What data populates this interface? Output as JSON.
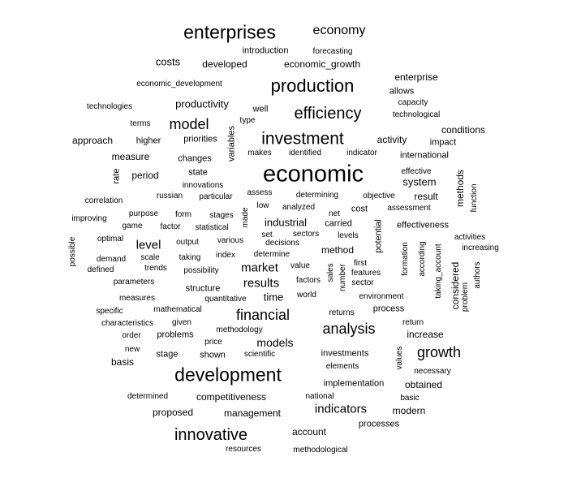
{
  "words": [
    "enterprises",
    "economy",
    "introduction",
    "forecasting",
    "costs",
    "developed",
    "economic_growth",
    "economic_development",
    "production",
    "enterprise",
    "allows",
    "technologies",
    "productivity",
    "well",
    "capacity",
    "efficiency",
    "technological",
    "terms",
    "model",
    "type",
    "conditions",
    "approach",
    "higher",
    "priorities",
    "investment",
    "activity",
    "impact",
    "measure",
    "makes",
    "identified",
    "indicator",
    "international",
    "changes",
    "variables",
    "economic",
    "rate",
    "period",
    "state",
    "effective",
    "system",
    "innovations",
    "correlation",
    "russian",
    "particular",
    "assess",
    "determining",
    "objective",
    "result",
    "methods",
    "function",
    "purpose",
    "form",
    "stages",
    "made",
    "low",
    "analyzed",
    "net",
    "cost",
    "assessment",
    "improving",
    "game",
    "factor",
    "statistical",
    "industrial",
    "carried",
    "potential",
    "effectiveness",
    "optimal",
    "set",
    "sectors",
    "levels",
    "activities",
    "level",
    "output",
    "various",
    "decisions",
    "possible",
    "formation",
    "according",
    "taking_account",
    "increasing",
    "demand",
    "scale",
    "taking",
    "index",
    "determine",
    "method",
    "defined",
    "trends",
    "possibility",
    "market",
    "value",
    "sales",
    "first",
    "features",
    "authors",
    "parameters",
    "factors",
    "number",
    "sector",
    "considered",
    "problem",
    "structure",
    "results",
    "measures",
    "quantitative",
    "time",
    "world",
    "environment",
    "specific",
    "mathematical",
    "financial",
    "returns",
    "process",
    "characteristics",
    "given",
    "methodology",
    "analysis",
    "return",
    "order",
    "problems",
    "price",
    "models",
    "increase",
    "new",
    "values",
    "basis",
    "stage",
    "shown",
    "scientific",
    "investments",
    "growth",
    "elements",
    "necessary",
    "development",
    "implementation",
    "obtained",
    "determined",
    "competitiveness",
    "national",
    "basic",
    "indicators",
    "proposed",
    "management",
    "modern",
    "processes",
    "innovative",
    "account",
    "resources",
    "methodological"
  ]
}
